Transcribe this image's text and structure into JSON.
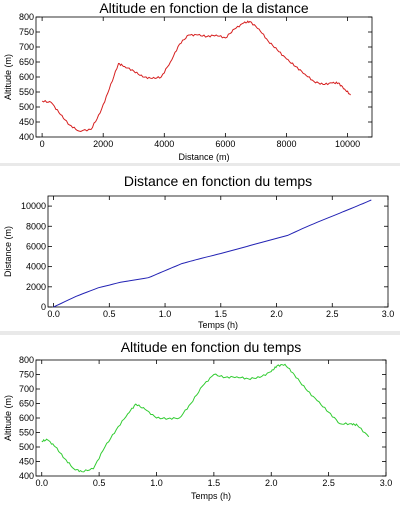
{
  "chart_data": [
    {
      "type": "line",
      "title": "Altitude en fonction de la distance",
      "xlabel": "Distance (m)",
      "ylabel": "Altitude (m)",
      "xlim": [
        -200,
        10800
      ],
      "ylim": [
        400,
        800
      ],
      "xticks": [
        0,
        2000,
        4000,
        6000,
        8000,
        10000
      ],
      "xtick_labels": [
        "0",
        "2000",
        "4000",
        "6000",
        "8000",
        "10000"
      ],
      "yticks": [
        400,
        450,
        500,
        550,
        600,
        650,
        700,
        750,
        800
      ],
      "ytick_labels": [
        "400",
        "450",
        "500",
        "550",
        "600",
        "650",
        "700",
        "750",
        "800"
      ],
      "color": "#d62020",
      "series": [
        {
          "x": [
            0,
            300,
            600,
            900,
            1200,
            1600,
            1900,
            2200,
            2500,
            2700,
            3000,
            3300,
            3600,
            3900,
            4200,
            4500,
            4800,
            5100,
            5400,
            5700,
            6000,
            6300,
            6600,
            6800,
            7100,
            7400,
            7700,
            8000,
            8300,
            8600,
            8900,
            9200,
            9500,
            9700,
            9900,
            10100
          ],
          "y": [
            520,
            515,
            475,
            440,
            420,
            425,
            480,
            560,
            645,
            635,
            620,
            600,
            595,
            600,
            650,
            710,
            740,
            740,
            735,
            740,
            730,
            760,
            780,
            785,
            760,
            720,
            690,
            660,
            635,
            610,
            585,
            575,
            580,
            580,
            560,
            540
          ]
        }
      ]
    },
    {
      "type": "line",
      "title": "Distance en fonction du temps",
      "xlabel": "Temps (h)",
      "ylabel": "Distance (m)",
      "xlim": [
        -0.05,
        3.0
      ],
      "ylim": [
        0,
        11000
      ],
      "xticks": [
        0,
        0.5,
        1.0,
        1.5,
        2.0,
        2.5,
        3.0
      ],
      "xtick_labels": [
        "0.0",
        "0.5",
        "1.0",
        "1.5",
        "2.0",
        "2.5",
        "3.0"
      ],
      "yticks": [
        0,
        2000,
        4000,
        6000,
        8000,
        10000
      ],
      "ytick_labels": [
        "0",
        "2000",
        "4000",
        "6000",
        "8000",
        "10000"
      ],
      "color": "#2323b4",
      "series": [
        {
          "x": [
            0,
            0.2,
            0.4,
            0.6,
            0.85,
            1.0,
            1.15,
            1.3,
            1.5,
            1.7,
            1.9,
            2.1,
            2.3,
            2.5,
            2.7,
            2.85
          ],
          "y": [
            0,
            1050,
            1900,
            2450,
            2900,
            3600,
            4300,
            4750,
            5300,
            5900,
            6500,
            7100,
            8100,
            9000,
            9900,
            10600
          ]
        }
      ]
    },
    {
      "type": "line",
      "title": "Altitude en fonction du temps",
      "xlabel": "Temps (h)",
      "ylabel": "Altitude (m)",
      "xlim": [
        -0.05,
        3.0
      ],
      "ylim": [
        400,
        800
      ],
      "xticks": [
        0,
        0.5,
        1.0,
        1.5,
        2.0,
        2.5,
        3.0
      ],
      "xtick_labels": [
        "0.0",
        "0.5",
        "1.0",
        "1.5",
        "2.0",
        "2.5",
        "3.0"
      ],
      "yticks": [
        400,
        450,
        500,
        550,
        600,
        650,
        700,
        750,
        800
      ],
      "ytick_labels": [
        "400",
        "450",
        "500",
        "550",
        "600",
        "650",
        "700",
        "750",
        "800"
      ],
      "color": "#33cc33",
      "series": [
        {
          "x": [
            0,
            0.05,
            0.12,
            0.2,
            0.28,
            0.35,
            0.45,
            0.55,
            0.65,
            0.75,
            0.82,
            0.9,
            1.0,
            1.1,
            1.2,
            1.3,
            1.4,
            1.5,
            1.6,
            1.7,
            1.8,
            1.9,
            2.0,
            2.05,
            2.12,
            2.2,
            2.3,
            2.4,
            2.5,
            2.6,
            2.7,
            2.75,
            2.85
          ],
          "y": [
            520,
            525,
            500,
            460,
            425,
            415,
            425,
            500,
            560,
            615,
            648,
            630,
            600,
            598,
            600,
            650,
            710,
            750,
            740,
            742,
            735,
            740,
            760,
            780,
            785,
            750,
            700,
            660,
            620,
            580,
            580,
            575,
            535
          ]
        }
      ]
    }
  ]
}
